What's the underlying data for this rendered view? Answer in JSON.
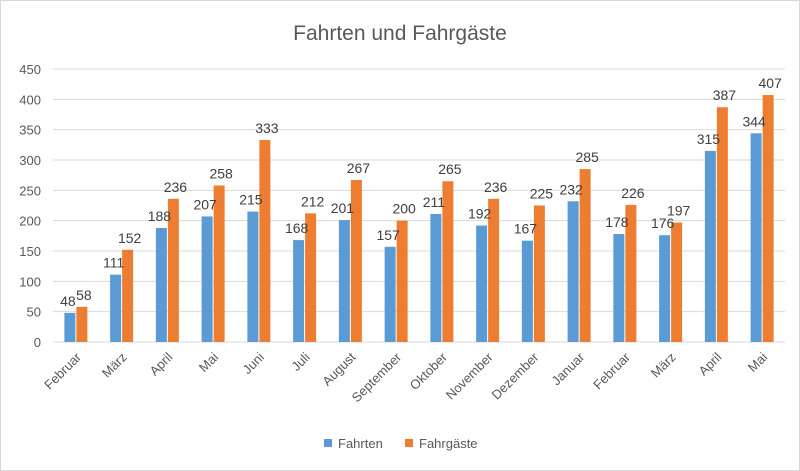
{
  "chart_data": {
    "type": "bar",
    "title": "Fahrten und Fahrgäste",
    "xlabel": "",
    "ylabel": "",
    "ylim": [
      0,
      450
    ],
    "yticks": [
      0,
      50,
      100,
      150,
      200,
      250,
      300,
      350,
      400,
      450
    ],
    "grid": true,
    "legend_position": "bottom",
    "categories": [
      "Februar",
      "März",
      "April",
      "Mai",
      "Juni",
      "Juli",
      "August",
      "September",
      "Oktober",
      "November",
      "Dezember",
      "Januar",
      "Februar",
      "März",
      "April",
      "Mai"
    ],
    "series": [
      {
        "name": "Fahrten",
        "color": "#5b9bd5",
        "values": [
          48,
          111,
          188,
          207,
          215,
          168,
          201,
          157,
          211,
          192,
          167,
          232,
          178,
          176,
          315,
          344
        ]
      },
      {
        "name": "Fahrgäste",
        "color": "#ed7d31",
        "values": [
          58,
          152,
          236,
          258,
          333,
          212,
          267,
          200,
          265,
          236,
          225,
          285,
          226,
          197,
          387,
          407
        ]
      }
    ]
  }
}
